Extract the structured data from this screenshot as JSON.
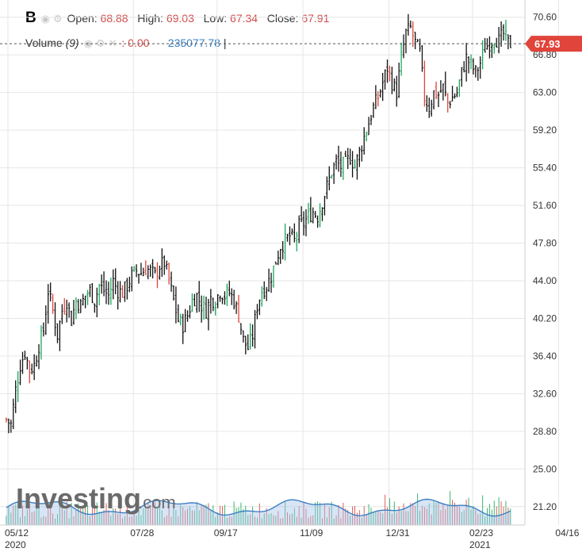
{
  "header": {
    "symbol": "B",
    "open_label": "Open:",
    "open_value": "68.88",
    "high_label": "High:",
    "high_value": "69.03",
    "low_label": "Low:",
    "low_value": "67.34",
    "close_label": "Close:",
    "close_value": "67.91",
    "volume_label": "Volume",
    "volume_period": "(9)",
    "volume_value": ": 0.00",
    "volume_ma_value": "235077.78",
    "volume_cursor": "|"
  },
  "watermark": {
    "brand": "Investing",
    "suffix": ".com"
  },
  "colors": {
    "up": "#1aa85a",
    "down": "#e0443a",
    "bar": "#111111",
    "grid": "#e6e6e6",
    "badge": "#e0443a",
    "volume_area": "#a9c6ea",
    "volume_line": "#3a7fc4"
  },
  "chart_data": {
    "type": "ohlc",
    "last_price": "67.93",
    "y_ticks": [
      "70.60",
      "66.80",
      "63.00",
      "59.20",
      "55.40",
      "51.60",
      "47.80",
      "44.00",
      "40.20",
      "36.40",
      "32.60",
      "28.80",
      "25.00",
      "21.20"
    ],
    "ylim": [
      19.5,
      72.5
    ],
    "x_ticks": [
      {
        "label": "05/12",
        "sub": "2020",
        "idx": 0
      },
      {
        "label": "07/28",
        "sub": "",
        "idx": 54
      },
      {
        "label": "09/17",
        "sub": "",
        "idx": 90
      },
      {
        "label": "11/09",
        "sub": "",
        "idx": 127
      },
      {
        "label": "12/31",
        "sub": "",
        "idx": 164
      },
      {
        "label": "02/23",
        "sub": "2021",
        "idx": 200
      },
      {
        "label": "04/16",
        "sub": "",
        "idx": 237
      }
    ],
    "close_path": [
      [
        0,
        30
      ],
      [
        2,
        29.5
      ],
      [
        4,
        33
      ],
      [
        6,
        35.5
      ],
      [
        8,
        36.8
      ],
      [
        10,
        35
      ],
      [
        12,
        35.5
      ],
      [
        14,
        37.5
      ],
      [
        16,
        39
      ],
      [
        18,
        43
      ],
      [
        20,
        41
      ],
      [
        22,
        38.5
      ],
      [
        24,
        41
      ],
      [
        26,
        42
      ],
      [
        28,
        40
      ],
      [
        30,
        42
      ],
      [
        32,
        41.5
      ],
      [
        34,
        42.5
      ],
      [
        36,
        43
      ],
      [
        38,
        42
      ],
      [
        40,
        43.5
      ],
      [
        42,
        43
      ],
      [
        44,
        42.5
      ],
      [
        46,
        44
      ],
      [
        48,
        43
      ],
      [
        50,
        42.8
      ],
      [
        52,
        43.5
      ],
      [
        54,
        44.5
      ],
      [
        56,
        45
      ],
      [
        58,
        44.8
      ],
      [
        60,
        45.2
      ],
      [
        62,
        45
      ],
      [
        64,
        44.5
      ],
      [
        66,
        45.5
      ],
      [
        68,
        45.8
      ],
      [
        70,
        44
      ],
      [
        72,
        42
      ],
      [
        74,
        40
      ],
      [
        76,
        39.5
      ],
      [
        78,
        40.5
      ],
      [
        80,
        42
      ],
      [
        82,
        42.5
      ],
      [
        84,
        41.5
      ],
      [
        86,
        41
      ],
      [
        88,
        42.2
      ],
      [
        90,
        42
      ],
      [
        92,
        43
      ],
      [
        94,
        42.5
      ],
      [
        96,
        42.8
      ],
      [
        98,
        42
      ],
      [
        100,
        40.5
      ],
      [
        102,
        38
      ],
      [
        104,
        37.2
      ],
      [
        106,
        38.5
      ],
      [
        108,
        41.5
      ],
      [
        110,
        43
      ],
      [
        112,
        43.5
      ],
      [
        114,
        44.5
      ],
      [
        116,
        46
      ],
      [
        118,
        47.5
      ],
      [
        120,
        48
      ],
      [
        122,
        48.5
      ],
      [
        124,
        48
      ],
      [
        126,
        49.5
      ],
      [
        128,
        49.8
      ],
      [
        130,
        50.5
      ],
      [
        132,
        51
      ],
      [
        134,
        50.5
      ],
      [
        136,
        52
      ],
      [
        138,
        53.5
      ],
      [
        140,
        55
      ],
      [
        142,
        56
      ],
      [
        144,
        55.5
      ],
      [
        146,
        55.8
      ],
      [
        148,
        56.5
      ],
      [
        150,
        55.5
      ],
      [
        152,
        57
      ],
      [
        154,
        58.5
      ],
      [
        156,
        60
      ],
      [
        158,
        61.5
      ],
      [
        160,
        62.5
      ],
      [
        162,
        64
      ],
      [
        164,
        65.5
      ],
      [
        166,
        64
      ],
      [
        168,
        63
      ],
      [
        170,
        66.5
      ],
      [
        172,
        69
      ],
      [
        174,
        69.5
      ],
      [
        176,
        68
      ],
      [
        178,
        67
      ],
      [
        180,
        62.5
      ],
      [
        182,
        61.5
      ],
      [
        184,
        63
      ],
      [
        186,
        62.8
      ],
      [
        188,
        63.5
      ],
      [
        190,
        62
      ],
      [
        192,
        62.5
      ],
      [
        194,
        63
      ],
      [
        196,
        65
      ],
      [
        198,
        66.5
      ],
      [
        200,
        65.8
      ],
      [
        202,
        65
      ],
      [
        204,
        66
      ],
      [
        206,
        67.5
      ],
      [
        208,
        68
      ],
      [
        210,
        68.5
      ],
      [
        212,
        68.2
      ],
      [
        214,
        68.9
      ],
      [
        216,
        67.93
      ]
    ],
    "volume_ylim": [
      19.5,
      26.5
    ]
  }
}
